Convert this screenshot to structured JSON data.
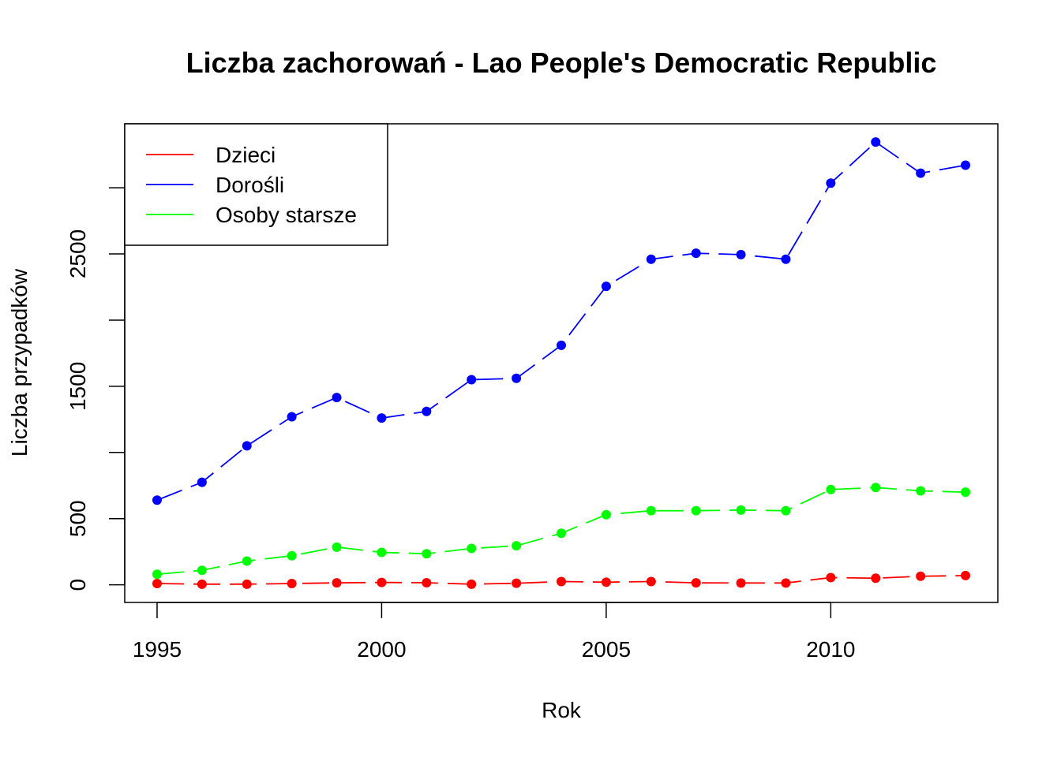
{
  "chart_data": {
    "type": "line",
    "title": "Liczba zachorowań -  Lao People's Democratic Republic",
    "xlabel": "Rok",
    "ylabel": "Liczba przypadków",
    "x": [
      1995,
      1996,
      1997,
      1998,
      1999,
      2000,
      2001,
      2002,
      2003,
      2004,
      2005,
      2006,
      2007,
      2008,
      2009,
      2010,
      2011,
      2012,
      2013
    ],
    "xlim": [
      1994.28,
      2013.72
    ],
    "ylim": [
      -133,
      3483
    ],
    "x_ticks": [
      1995,
      2000,
      2005,
      2010
    ],
    "y_ticks": [
      0,
      500,
      1000,
      1500,
      2000,
      2500,
      3000
    ],
    "y_tick_labels": [
      "0",
      "500",
      "",
      "1500",
      "",
      "2500",
      ""
    ],
    "grid": false,
    "legend_position": "top-left",
    "series": [
      {
        "name": "Dzieci",
        "color": "#ff0000",
        "values": [
          10,
          5,
          5,
          10,
          15,
          18,
          16,
          5,
          12,
          25,
          20,
          25,
          15,
          14,
          14,
          55,
          50,
          65,
          70
        ]
      },
      {
        "name": "Dorośli",
        "color": "#0000ff",
        "values": [
          640,
          775,
          1050,
          1270,
          1415,
          1260,
          1310,
          1550,
          1560,
          1810,
          2255,
          2460,
          2505,
          2495,
          2460,
          3035,
          3345,
          3110,
          3170
        ]
      },
      {
        "name": "Osoby starsze",
        "color": "#00ff00",
        "values": [
          80,
          110,
          180,
          220,
          285,
          245,
          235,
          275,
          295,
          390,
          530,
          560,
          560,
          565,
          560,
          720,
          735,
          710,
          700
        ]
      }
    ]
  }
}
